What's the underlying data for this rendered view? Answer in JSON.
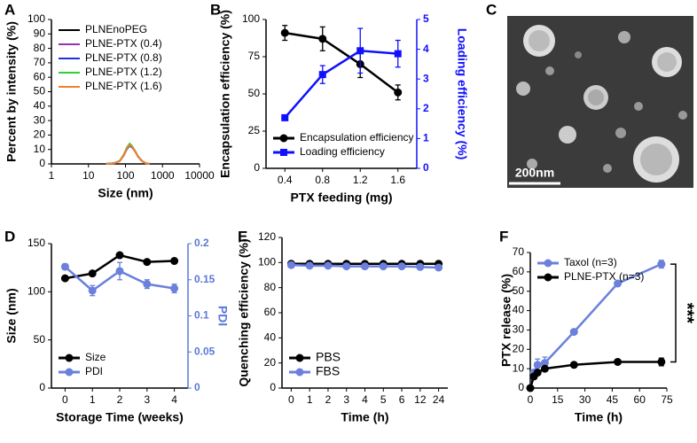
{
  "chart_data": [
    {
      "type": "line",
      "label": "A",
      "xlabel": "Size (nm)",
      "ylabel": "Percent by intensity (%)",
      "xlog": true,
      "xlim": [
        1,
        10000
      ],
      "xticks": [
        1,
        10,
        100,
        1000,
        10000
      ],
      "ylim": [
        0,
        100
      ],
      "yticks": [
        0,
        10,
        20,
        30,
        40,
        50,
        60,
        70,
        80,
        90,
        100
      ],
      "legend": "upper left",
      "x": [
        30,
        50,
        70,
        90,
        110,
        130,
        150,
        180,
        220,
        280,
        350,
        450
      ],
      "series": [
        {
          "name": "PLNEnoPEG",
          "color": "#000000",
          "values": [
            0,
            0.5,
            2,
            6,
            11,
            13.5,
            12,
            9,
            5,
            2,
            0.5,
            0
          ]
        },
        {
          "name": "PLNE-PTX (0.4)",
          "color": "#9b30b0",
          "values": [
            0,
            0.5,
            2,
            6,
            11,
            13,
            12,
            9,
            5,
            2,
            0.5,
            0
          ]
        },
        {
          "name": "PLNE-PTX (0.8)",
          "color": "#2030e0",
          "values": [
            0,
            0.5,
            2,
            6,
            10.5,
            12.5,
            11.5,
            9,
            5,
            2,
            0.5,
            0
          ]
        },
        {
          "name": "PLNE-PTX (1.2)",
          "color": "#30d030",
          "values": [
            0,
            0.5,
            2,
            6.5,
            11.5,
            14,
            12.5,
            9,
            5,
            2,
            0.5,
            0
          ]
        },
        {
          "name": "PLNE-PTX (1.6)",
          "color": "#f08030",
          "values": [
            0,
            0.5,
            2,
            6,
            11,
            13,
            12,
            9,
            5,
            2,
            0.5,
            0
          ]
        }
      ]
    },
    {
      "type": "line",
      "label": "B",
      "xlabel": "PTX feeding (mg)",
      "ylabel": "Encapsulation efficiency (%)",
      "y2label": "Loading efficiency (%)",
      "y2color": "#1010ff",
      "xlim": [
        0.2,
        1.8
      ],
      "xticks": [
        0.4,
        0.8,
        1.2,
        1.6
      ],
      "ylim": [
        0,
        100
      ],
      "yticks": [
        0,
        25,
        50,
        75,
        100
      ],
      "y2lim": [
        0,
        5
      ],
      "y2ticks": [
        0,
        1,
        2,
        3,
        4,
        5
      ],
      "legend": "lower left",
      "x": [
        0.4,
        0.8,
        1.2,
        1.6
      ],
      "series": [
        {
          "name": "Encapsulation efficiency",
          "color": "#000000",
          "marker": "circle",
          "values": [
            91,
            87,
            70,
            51
          ],
          "errors": [
            5,
            8,
            9,
            5
          ]
        },
        {
          "name": "Loading efficiency",
          "color": "#1010ff",
          "marker": "square",
          "axis": "y2",
          "values": [
            1.7,
            3.15,
            3.95,
            3.85
          ],
          "errors": [
            0.05,
            0.3,
            0.75,
            0.45
          ]
        }
      ]
    },
    {
      "type": "line",
      "label": "D",
      "xlabel": "Storage Time (weeks)",
      "ylabel": "Size (nm)",
      "y2label": "PDI",
      "y2color": "#5b78d8",
      "xlim": [
        -0.5,
        4.5
      ],
      "xticks": [
        0,
        1,
        2,
        3,
        4
      ],
      "ylim": [
        0,
        150
      ],
      "yticks": [
        0,
        50,
        100,
        150
      ],
      "y2lim": [
        0,
        0.2
      ],
      "y2ticks": [
        0,
        0.05,
        0.1,
        0.15,
        0.2
      ],
      "legend": "lower left",
      "x": [
        0,
        1,
        2,
        3,
        4
      ],
      "series": [
        {
          "name": "Size",
          "color": "#000000",
          "marker": "circle",
          "values": [
            114,
            119,
            138,
            131,
            132
          ]
        },
        {
          "name": "PDI",
          "color": "#6a80dc",
          "marker": "circle",
          "axis": "y2",
          "values": [
            0.168,
            0.135,
            0.162,
            0.144,
            0.138
          ],
          "errors": [
            0.004,
            0.007,
            0.012,
            0.006,
            0.006
          ]
        }
      ]
    },
    {
      "type": "line",
      "label": "E",
      "xlabel": "Time (h)",
      "ylabel": "Quenching efficiency (%)",
      "ylim": [
        0,
        120
      ],
      "yticks": [
        0,
        20,
        40,
        60,
        80,
        100,
        120
      ],
      "legend": "lower left",
      "categories": [
        "0",
        "1",
        "2",
        "3",
        "4",
        "5",
        "6",
        "12",
        "24"
      ],
      "series": [
        {
          "name": "PBS",
          "color": "#000000",
          "marker": "circle",
          "values": [
            99,
            99,
            99,
            99,
            99,
            99,
            99,
            99,
            99
          ]
        },
        {
          "name": "FBS",
          "color": "#6a80dc",
          "marker": "circle",
          "values": [
            98,
            97.5,
            97.5,
            97,
            97,
            97,
            97,
            96.5,
            96
          ]
        }
      ]
    },
    {
      "type": "line",
      "label": "F",
      "xlabel": "Time (h)",
      "ylabel": "PTX release (%)",
      "annotation": "***",
      "xlim": [
        0,
        75
      ],
      "xticks": [
        0,
        15,
        30,
        45,
        60,
        75
      ],
      "ylim": [
        0,
        70
      ],
      "yticks": [
        0,
        10,
        20,
        30,
        40,
        50,
        60,
        70
      ],
      "legend": "upper left",
      "x": [
        0,
        2,
        4,
        8,
        24,
        48,
        72
      ],
      "series": [
        {
          "name": "Taxol (n=3)",
          "color": "#6a80dc",
          "marker": "circle",
          "values": [
            0,
            8,
            12,
            13,
            29,
            54,
            64
          ],
          "errors": [
            0,
            1,
            3,
            3,
            1,
            1,
            2
          ]
        },
        {
          "name": "PLNE-PTX (n=3)",
          "color": "#000000",
          "marker": "circle",
          "values": [
            0,
            6,
            8,
            10,
            12,
            13.5,
            13.5
          ],
          "errors": [
            0,
            1,
            1,
            1,
            1,
            1,
            2
          ]
        }
      ]
    }
  ],
  "image": {
    "label": "C",
    "scale_bar": "200nm"
  }
}
